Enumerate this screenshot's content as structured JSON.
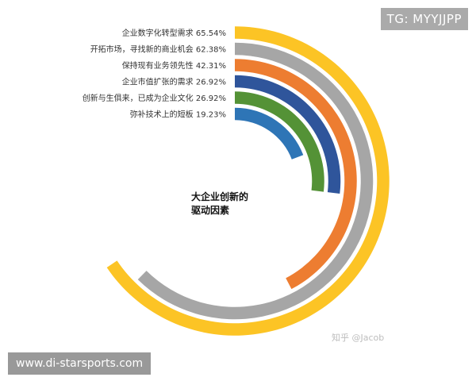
{
  "chart_data": {
    "type": "radial-bar",
    "center_title_line1": "大企业创新的",
    "center_title_line2": "驱动因素",
    "series": [
      {
        "label": "企业数字化转型需求",
        "value": 65.54,
        "value_text": "65.54%",
        "color": "#fcc425"
      },
      {
        "label": "开拓市场，寻找新的商业机会",
        "value": 62.38,
        "value_text": "62.38%",
        "color": "#a6a6a6"
      },
      {
        "label": "保持现有业务领先性",
        "value": 42.31,
        "value_text": "42.31%",
        "color": "#ed7d31"
      },
      {
        "label": "企业市值扩张的需求",
        "value": 26.92,
        "value_text": "26.92%",
        "color": "#2f559b"
      },
      {
        "label": "创新与生俱来，已成为企业文化",
        "value": 26.92,
        "value_text": "26.92%",
        "color": "#549236"
      },
      {
        "label": "弥补技术上的短板",
        "value": 19.23,
        "value_text": "19.23%",
        "color": "#2e75b6"
      }
    ]
  },
  "watermark_top": "TG: MYYJJPP",
  "watermark_bottom": "www.di-starsports.com",
  "credit": "知乎 @Jacob"
}
